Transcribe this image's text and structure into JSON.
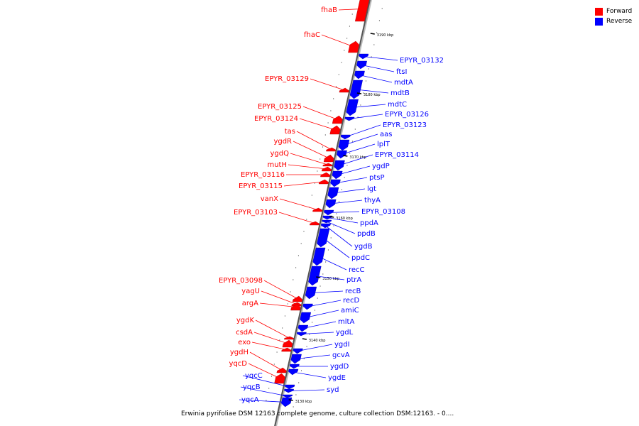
{
  "legend": {
    "forward_label": "Forward",
    "reverse_label": "Reverse",
    "forward_color": "#ff0000",
    "reverse_color": "#0000ff"
  },
  "caption": "Erwinia pyrifoliae DSM 12163 complete genome, culture collection DSM:12163. - 0....",
  "scale": {
    "unit": "kbp",
    "ticks": [
      3190,
      3180,
      3170,
      3160,
      3150,
      3140,
      3130
    ]
  },
  "genes": [
    {
      "name": "fhaB",
      "strand": "forward"
    },
    {
      "name": "fhaC",
      "strand": "forward"
    },
    {
      "name": "EPYR_03132",
      "strand": "reverse"
    },
    {
      "name": "ftsI",
      "strand": "reverse"
    },
    {
      "name": "mdtA",
      "strand": "reverse"
    },
    {
      "name": "EPYR_03129",
      "strand": "forward"
    },
    {
      "name": "mdtB",
      "strand": "reverse"
    },
    {
      "name": "mdtC",
      "strand": "reverse"
    },
    {
      "name": "EPYR_03126",
      "strand": "reverse"
    },
    {
      "name": "EPYR_03125",
      "strand": "forward"
    },
    {
      "name": "EPYR_03124",
      "strand": "forward"
    },
    {
      "name": "EPYR_03123",
      "strand": "reverse"
    },
    {
      "name": "aas",
      "strand": "reverse"
    },
    {
      "name": "tas",
      "strand": "forward"
    },
    {
      "name": "lplT",
      "strand": "reverse"
    },
    {
      "name": "ygdR",
      "strand": "forward"
    },
    {
      "name": "ygdQ",
      "strand": "forward"
    },
    {
      "name": "EPYR_03114",
      "strand": "reverse"
    },
    {
      "name": "mutH",
      "strand": "forward"
    },
    {
      "name": "ygdP",
      "strand": "reverse"
    },
    {
      "name": "EPYR_03116",
      "strand": "forward"
    },
    {
      "name": "ptsP",
      "strand": "reverse"
    },
    {
      "name": "EPYR_03115",
      "strand": "forward"
    },
    {
      "name": "lgt",
      "strand": "reverse"
    },
    {
      "name": "vanX",
      "strand": "forward"
    },
    {
      "name": "thyA",
      "strand": "reverse"
    },
    {
      "name": "EPYR_03108",
      "strand": "reverse"
    },
    {
      "name": "EPYR_03103",
      "strand": "forward"
    },
    {
      "name": "ppdA",
      "strand": "reverse"
    },
    {
      "name": "ppdB",
      "strand": "reverse"
    },
    {
      "name": "ygdB",
      "strand": "reverse"
    },
    {
      "name": "ppdC",
      "strand": "reverse"
    },
    {
      "name": "recC",
      "strand": "reverse"
    },
    {
      "name": "ptrA",
      "strand": "reverse"
    },
    {
      "name": "EPYR_03098",
      "strand": "forward"
    },
    {
      "name": "recB",
      "strand": "reverse"
    },
    {
      "name": "yagU",
      "strand": "forward"
    },
    {
      "name": "recD",
      "strand": "reverse"
    },
    {
      "name": "argA",
      "strand": "forward"
    },
    {
      "name": "amiC",
      "strand": "reverse"
    },
    {
      "name": "ygdK",
      "strand": "forward"
    },
    {
      "name": "mltA",
      "strand": "reverse"
    },
    {
      "name": "csdA",
      "strand": "forward"
    },
    {
      "name": "ygdL",
      "strand": "reverse"
    },
    {
      "name": "exo",
      "strand": "forward"
    },
    {
      "name": "ygdI",
      "strand": "reverse"
    },
    {
      "name": "ygdH",
      "strand": "forward"
    },
    {
      "name": "gcvA",
      "strand": "reverse"
    },
    {
      "name": "yqcD",
      "strand": "forward"
    },
    {
      "name": "ygdD",
      "strand": "reverse"
    },
    {
      "name": "yqcC",
      "strand": "reverse"
    },
    {
      "name": "ygdE",
      "strand": "reverse"
    },
    {
      "name": "yqcB",
      "strand": "reverse"
    },
    {
      "name": "syd",
      "strand": "reverse"
    },
    {
      "name": "yqcA",
      "strand": "reverse"
    }
  ]
}
